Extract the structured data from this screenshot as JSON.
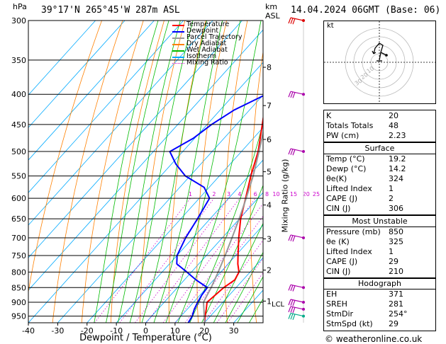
{
  "header": {
    "left_unit": "hPa",
    "location": "39°17'N  265°45'W  287m  ASL",
    "km_label": "km",
    "asl_label": "ASL",
    "datetime": "14.04.2024  06GMT  (Base: 06)"
  },
  "legend": [
    {
      "label": "Temperature",
      "color": "#ff0000"
    },
    {
      "label": "Dewpoint",
      "color": "#0000ff"
    },
    {
      "label": "Parcel Trajectory",
      "color": "#999999"
    },
    {
      "label": "Dry Adiabat",
      "color": "#ff8000"
    },
    {
      "label": "Wet Adiabat",
      "color": "#00bb00"
    },
    {
      "label": "Isotherm",
      "color": "#00aaff"
    },
    {
      "label": "Mixing Ratio",
      "color": "#cc00cc"
    }
  ],
  "mixing_ratio_labels": [
    "1",
    "2",
    "3",
    "4",
    "6",
    "8",
    "10",
    "15",
    "20",
    "25"
  ],
  "mixing_ratio_axis_label": "Mixing Ratio (g/kg)",
  "lcl_label": "LCL",
  "hodograph": {
    "label": "kt",
    "ring_labels": [
      "10",
      "20",
      "30"
    ]
  },
  "indices": {
    "top": [
      {
        "k": "K",
        "v": "20"
      },
      {
        "k": "Totals Totals",
        "v": "48"
      },
      {
        "k": "PW (cm)",
        "v": "2.23"
      }
    ],
    "surface_title": "Surface",
    "surface": [
      {
        "k": "Temp (°C)",
        "v": "19.2"
      },
      {
        "k": "Dewp (°C)",
        "v": "14.2"
      },
      {
        "k": "θe(K)",
        "v": "324"
      },
      {
        "k": "Lifted Index",
        "v": "1"
      },
      {
        "k": "CAPE (J)",
        "v": "2"
      },
      {
        "k": "CIN (J)",
        "v": "306"
      }
    ],
    "mu_title": "Most Unstable",
    "mu": [
      {
        "k": "Pressure (mb)",
        "v": "850"
      },
      {
        "k": "θe (K)",
        "v": "325"
      },
      {
        "k": "Lifted Index",
        "v": "1"
      },
      {
        "k": "CAPE (J)",
        "v": "29"
      },
      {
        "k": "CIN (J)",
        "v": "210"
      }
    ],
    "hodo_title": "Hodograph",
    "hodo": [
      {
        "k": "EH",
        "v": "371"
      },
      {
        "k": "SREH",
        "v": "281"
      },
      {
        "k": "StmDir",
        "v": "254°"
      },
      {
        "k": "StmSpd (kt)",
        "v": "29"
      }
    ]
  },
  "copyright": "© weatheronline.co.uk",
  "chart_data": {
    "type": "line",
    "title": "39°17'N  265°45'W  287m  ASL",
    "xlabel": "Dewpoint / Temperature (°C)",
    "ylabel": "hPa",
    "x_ticks": [
      -40,
      -30,
      -20,
      -10,
      0,
      10,
      20,
      30
    ],
    "pressure_levels": [
      300,
      350,
      400,
      450,
      500,
      550,
      600,
      650,
      700,
      750,
      800,
      850,
      900,
      950
    ],
    "km_ticks": [
      {
        "label": "8",
        "p": 360
      },
      {
        "label": "7",
        "p": 418
      },
      {
        "label": "6",
        "p": 477
      },
      {
        "label": "5",
        "p": 541
      },
      {
        "label": "4",
        "p": 616
      },
      {
        "label": "3",
        "p": 703
      },
      {
        "label": "2",
        "p": 794
      },
      {
        "label": "1",
        "p": 896
      }
    ],
    "skew": 0.9,
    "xlim": [
      -40,
      40
    ],
    "series": [
      {
        "name": "Temperature",
        "color": "#ff0000",
        "points": [
          [
            975,
            20
          ],
          [
            950,
            18.2
          ],
          [
            925,
            16.5
          ],
          [
            900,
            14.6
          ],
          [
            875,
            15.2
          ],
          [
            850,
            15.8
          ],
          [
            825,
            17.2
          ],
          [
            800,
            16.2
          ],
          [
            775,
            13.3
          ],
          [
            750,
            10.8
          ],
          [
            700,
            5.6
          ],
          [
            650,
            0.4
          ],
          [
            600,
            -4.2
          ],
          [
            550,
            -9.3
          ],
          [
            500,
            -14.3
          ],
          [
            450,
            -21.2
          ],
          [
            400,
            -28.9
          ],
          [
            350,
            -38.5
          ],
          [
            300,
            -46.8
          ]
        ]
      },
      {
        "name": "Dewpoint",
        "color": "#0000ff",
        "points": [
          [
            975,
            14.5
          ],
          [
            950,
            13.8
          ],
          [
            925,
            12.4
          ],
          [
            900,
            11.4
          ],
          [
            875,
            10.6
          ],
          [
            850,
            10.2
          ],
          [
            825,
            4.0
          ],
          [
            800,
            -1.6
          ],
          [
            775,
            -7.5
          ],
          [
            750,
            -10.0
          ],
          [
            700,
            -12.5
          ],
          [
            650,
            -14.3
          ],
          [
            600,
            -16.5
          ],
          [
            575,
            -21.7
          ],
          [
            550,
            -31.6
          ],
          [
            525,
            -38.5
          ],
          [
            500,
            -44.4
          ],
          [
            475,
            -40.5
          ],
          [
            450,
            -38.5
          ],
          [
            425,
            -35.2
          ],
          [
            400,
            -29.1
          ],
          [
            350,
            -38.8
          ],
          [
            300,
            -47.0
          ]
        ]
      },
      {
        "name": "Parcel Trajectory",
        "color": "#999999",
        "points": [
          [
            975,
            20
          ],
          [
            950,
            17.9
          ],
          [
            925,
            15.7
          ],
          [
            900,
            13.4
          ],
          [
            880,
            12.6
          ],
          [
            850,
            11.5
          ],
          [
            800,
            9.1
          ],
          [
            750,
            6.4
          ],
          [
            700,
            3.3
          ],
          [
            650,
            -0.1
          ],
          [
            600,
            -4.0
          ],
          [
            550,
            -8.5
          ],
          [
            500,
            -14.0
          ],
          [
            450,
            -20.3
          ],
          [
            400,
            -27.9
          ],
          [
            350,
            -37.2
          ],
          [
            300,
            -48.6
          ]
        ]
      }
    ],
    "wind_barbs": [
      {
        "p": 300,
        "color": "#dd0000"
      },
      {
        "p": 400,
        "color": "#aa00aa"
      },
      {
        "p": 500,
        "color": "#aa00aa"
      },
      {
        "p": 700,
        "color": "#aa00aa"
      },
      {
        "p": 850,
        "color": "#aa00aa"
      },
      {
        "p": 900,
        "color": "#aa00aa"
      },
      {
        "p": 925,
        "color": "#aa00aa"
      },
      {
        "p": 950,
        "color": "#00aa88"
      }
    ]
  }
}
